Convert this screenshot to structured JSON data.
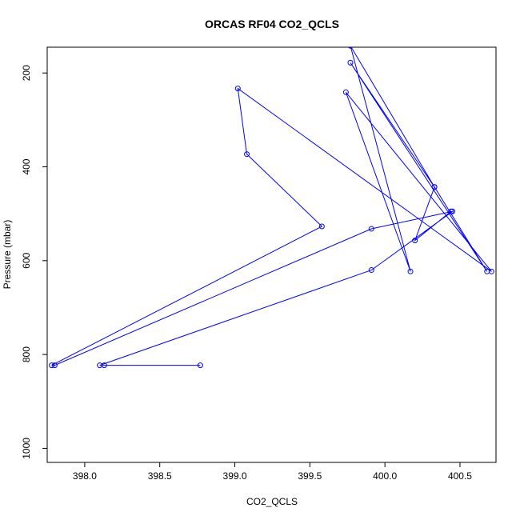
{
  "chart_data": {
    "type": "line",
    "title": "ORCAS RF04 CO2_QCLS",
    "xlabel": "CO2_QCLS",
    "ylabel": "Pressure (mbar)",
    "xlim": [
      397.75,
      400.74
    ],
    "ylim": [
      1030,
      145
    ],
    "y_reversed": true,
    "grid": false,
    "color": "#0000ff",
    "xticks": [
      398.0,
      398.5,
      399.0,
      399.5,
      400.0,
      400.5
    ],
    "xtick_labels": [
      "398.0",
      "398.5",
      "399.0",
      "399.5",
      "400.0",
      "400.5"
    ],
    "yticks": [
      200,
      400,
      600,
      800,
      1000
    ],
    "ytick_labels": [
      "200",
      "400",
      "600",
      "800",
      "1000"
    ],
    "series": [
      {
        "x": [
          398.77,
          398.13,
          398.1,
          399.91,
          400.45,
          399.91,
          397.8,
          397.78,
          399.58,
          399.08,
          399.02,
          400.71,
          399.74,
          400.17,
          399.77,
          400.33,
          400.68,
          399.77,
          400.33,
          400.2,
          400.44
        ],
        "y": [
          823,
          823,
          823,
          620,
          495,
          532,
          823,
          823,
          527,
          373,
          233,
          623,
          241,
          623,
          142,
          443,
          623,
          178,
          443,
          557,
          495
        ]
      }
    ]
  }
}
